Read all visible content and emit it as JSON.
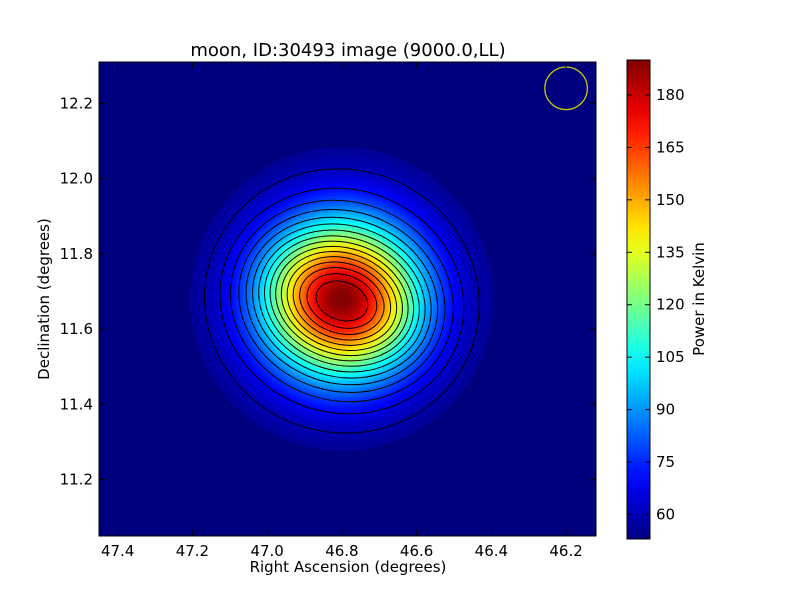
{
  "chart_data": {
    "type": "heatmap",
    "title": "moon, ID:30493 image (9000.0,LL)",
    "xlabel": "Right Ascension (degrees)",
    "ylabel": "Declination (degrees)",
    "xlim": [
      47.45,
      46.12
    ],
    "ylim": [
      11.05,
      12.31
    ],
    "x_ticks": [
      47.4,
      47.2,
      47.0,
      46.8,
      46.6,
      46.4,
      46.2
    ],
    "x_tick_labels": [
      "47.4",
      "47.2",
      "47.0",
      "46.8",
      "46.6",
      "46.4",
      "46.2"
    ],
    "y_ticks": [
      11.2,
      11.4,
      11.6,
      11.8,
      12.0,
      12.2
    ],
    "y_tick_labels": [
      "11.2",
      "11.4",
      "11.6",
      "11.8",
      "12.0",
      "12.2"
    ],
    "colormap": "jet",
    "colorbar": {
      "label": "Power in Kelvin",
      "range": [
        53,
        190
      ],
      "ticks": [
        60,
        75,
        90,
        105,
        120,
        135,
        150,
        165,
        180
      ],
      "tick_labels": [
        "60",
        "75",
        "90",
        "105",
        "120",
        "135",
        "150",
        "165",
        "180"
      ]
    },
    "source": {
      "center_ra": 46.8,
      "center_dec": 11.68,
      "peak_kelvin": 190,
      "background_kelvin": 53
    },
    "contour_levels": [
      60,
      68,
      76,
      84,
      92,
      100,
      108,
      116,
      124,
      132,
      140,
      148,
      156,
      164,
      172,
      180
    ],
    "beam_marker": {
      "ra": 46.2,
      "dec": 12.24,
      "radius_deg": 0.057,
      "color": "#c8c800"
    },
    "grid": false,
    "legend": "none"
  }
}
